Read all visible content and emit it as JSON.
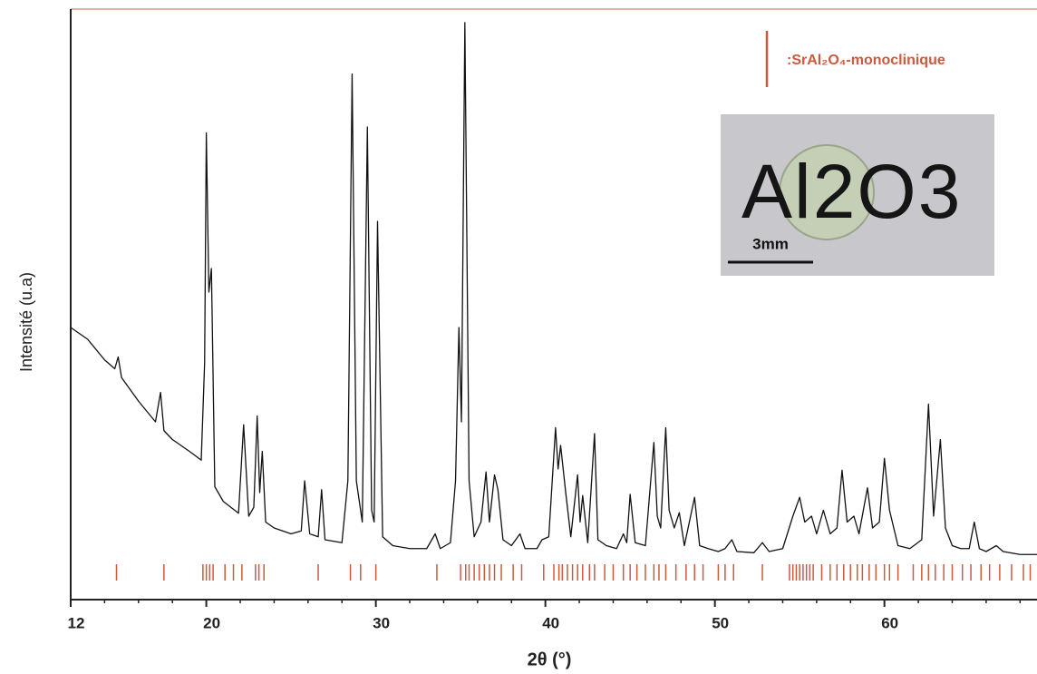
{
  "chart_data": {
    "type": "line",
    "x_label": "2θ (°)",
    "y_label": "Intensité (u.a)",
    "xlim": [
      12,
      69
    ],
    "ylim": [
      0,
      100
    ],
    "xticks": [
      12,
      20,
      30,
      40,
      50,
      60
    ],
    "xticks_minor": [
      14,
      16,
      18,
      22,
      24,
      26,
      28,
      32,
      34,
      36,
      38,
      42,
      44,
      46,
      48,
      52,
      54,
      56,
      58,
      62,
      64,
      66,
      68
    ],
    "series": [
      {
        "color": "#111111",
        "x": [
          12,
          13,
          14,
          14.6,
          14.8,
          15,
          16,
          17,
          17.3,
          17.5,
          18,
          19,
          19.7,
          19.9,
          20,
          20.15,
          20.3,
          20.5,
          21,
          21.9,
          22.2,
          22.5,
          22.8,
          23,
          23.15,
          23.3,
          23.5,
          24,
          25,
          25.6,
          25.8,
          26.1,
          26.6,
          26.8,
          27,
          28,
          28.35,
          28.6,
          28.85,
          29.2,
          29.5,
          29.75,
          29.9,
          30.1,
          30.4,
          31,
          32,
          33,
          33.5,
          33.8,
          34.4,
          34.7,
          34.9,
          35.05,
          35.25,
          35.5,
          35.8,
          36.2,
          36.5,
          36.7,
          37,
          37.2,
          37.5,
          38,
          38.5,
          38.8,
          39.5,
          39.8,
          40.2,
          40.6,
          40.75,
          40.9,
          41.2,
          41.5,
          41.9,
          42.05,
          42.2,
          42.5,
          42.9,
          43.1,
          43.6,
          44.2,
          44.6,
          44.8,
          45,
          45.3,
          45.9,
          46.4,
          46.6,
          46.8,
          47.1,
          47.3,
          47.6,
          47.9,
          48.2,
          48.8,
          49.1,
          49.6,
          50.2,
          50.6,
          51,
          51.3,
          52.3,
          52.8,
          53.2,
          54,
          54.6,
          55,
          55.3,
          55.7,
          56,
          56.4,
          56.8,
          57.2,
          57.5,
          57.8,
          58.2,
          58.5,
          59,
          59.3,
          59.7,
          60,
          60.3,
          60.8,
          61.5,
          62.2,
          62.6,
          62.9,
          63.3,
          63.6,
          64,
          64.5,
          65,
          65.3,
          65.6,
          66,
          66.6,
          67,
          68,
          69
        ],
        "values": [
          46,
          44,
          40.5,
          39,
          41,
          37.5,
          33.5,
          30,
          35,
          28.5,
          27,
          25,
          23.5,
          40,
          79,
          52,
          56,
          19,
          16.5,
          14.5,
          29.5,
          14,
          15.5,
          31,
          18,
          25,
          13,
          12,
          11,
          11.5,
          20,
          11,
          10.5,
          18.5,
          10,
          9.5,
          20,
          89,
          20,
          13,
          80,
          15,
          13,
          64,
          10.5,
          9,
          8.5,
          8.5,
          11,
          8.5,
          9.5,
          20,
          46,
          30,
          97.7,
          20,
          10.5,
          13,
          21.5,
          13,
          21,
          18.5,
          10,
          9,
          11,
          8.5,
          8.5,
          10,
          10.5,
          29,
          22,
          26,
          18,
          10.5,
          21,
          13,
          17.5,
          9.5,
          28,
          10,
          9,
          8.5,
          11,
          9.5,
          17.7,
          9.5,
          9,
          26.5,
          14,
          12,
          29,
          15,
          12,
          14.6,
          9,
          17.2,
          9,
          8.5,
          8,
          8.5,
          10,
          8,
          7.8,
          9.5,
          8,
          8.5,
          14,
          17.2,
          13,
          14,
          11,
          15,
          11,
          12,
          21.8,
          13,
          14,
          11,
          18.8,
          12,
          13,
          23.8,
          15,
          9,
          8.5,
          10,
          33,
          14,
          27,
          12,
          9,
          8.5,
          8.5,
          13,
          8.5,
          8,
          9,
          8,
          7.5,
          7.5
        ]
      }
    ],
    "reference": {
      "name": ":SrAl₂O₄-monoclinique",
      "color": "#cc5a3e",
      "positions": [
        14.7,
        17.5,
        19.8,
        20.0,
        20.2,
        20.4,
        21.1,
        21.6,
        22.1,
        22.9,
        23.1,
        23.4,
        26.6,
        28.5,
        29.1,
        30.0,
        33.6,
        35.0,
        35.3,
        35.5,
        35.8,
        36.1,
        36.4,
        36.7,
        37.0,
        37.4,
        38.1,
        38.6,
        39.9,
        40.5,
        40.8,
        41.0,
        41.3,
        41.6,
        41.9,
        42.2,
        42.6,
        42.9,
        43.5,
        44.0,
        44.6,
        45.0,
        45.4,
        45.9,
        46.4,
        46.7,
        47.1,
        47.7,
        48.3,
        48.8,
        49.3,
        50.2,
        50.6,
        51.1,
        52.8,
        54.4,
        54.6,
        54.8,
        55.0,
        55.2,
        55.4,
        55.6,
        55.8,
        56.3,
        56.8,
        57.2,
        57.6,
        58.0,
        58.4,
        58.7,
        59.1,
        59.5,
        60.0,
        60.3,
        60.8,
        61.7,
        62.2,
        62.6,
        63.0,
        63.5,
        64.0,
        64.6,
        65.1,
        65.7,
        66.2,
        66.8,
        67.5,
        68.2,
        68.6
      ]
    },
    "inset": {
      "label": "Al2O3",
      "scale_bar": "3mm"
    }
  }
}
